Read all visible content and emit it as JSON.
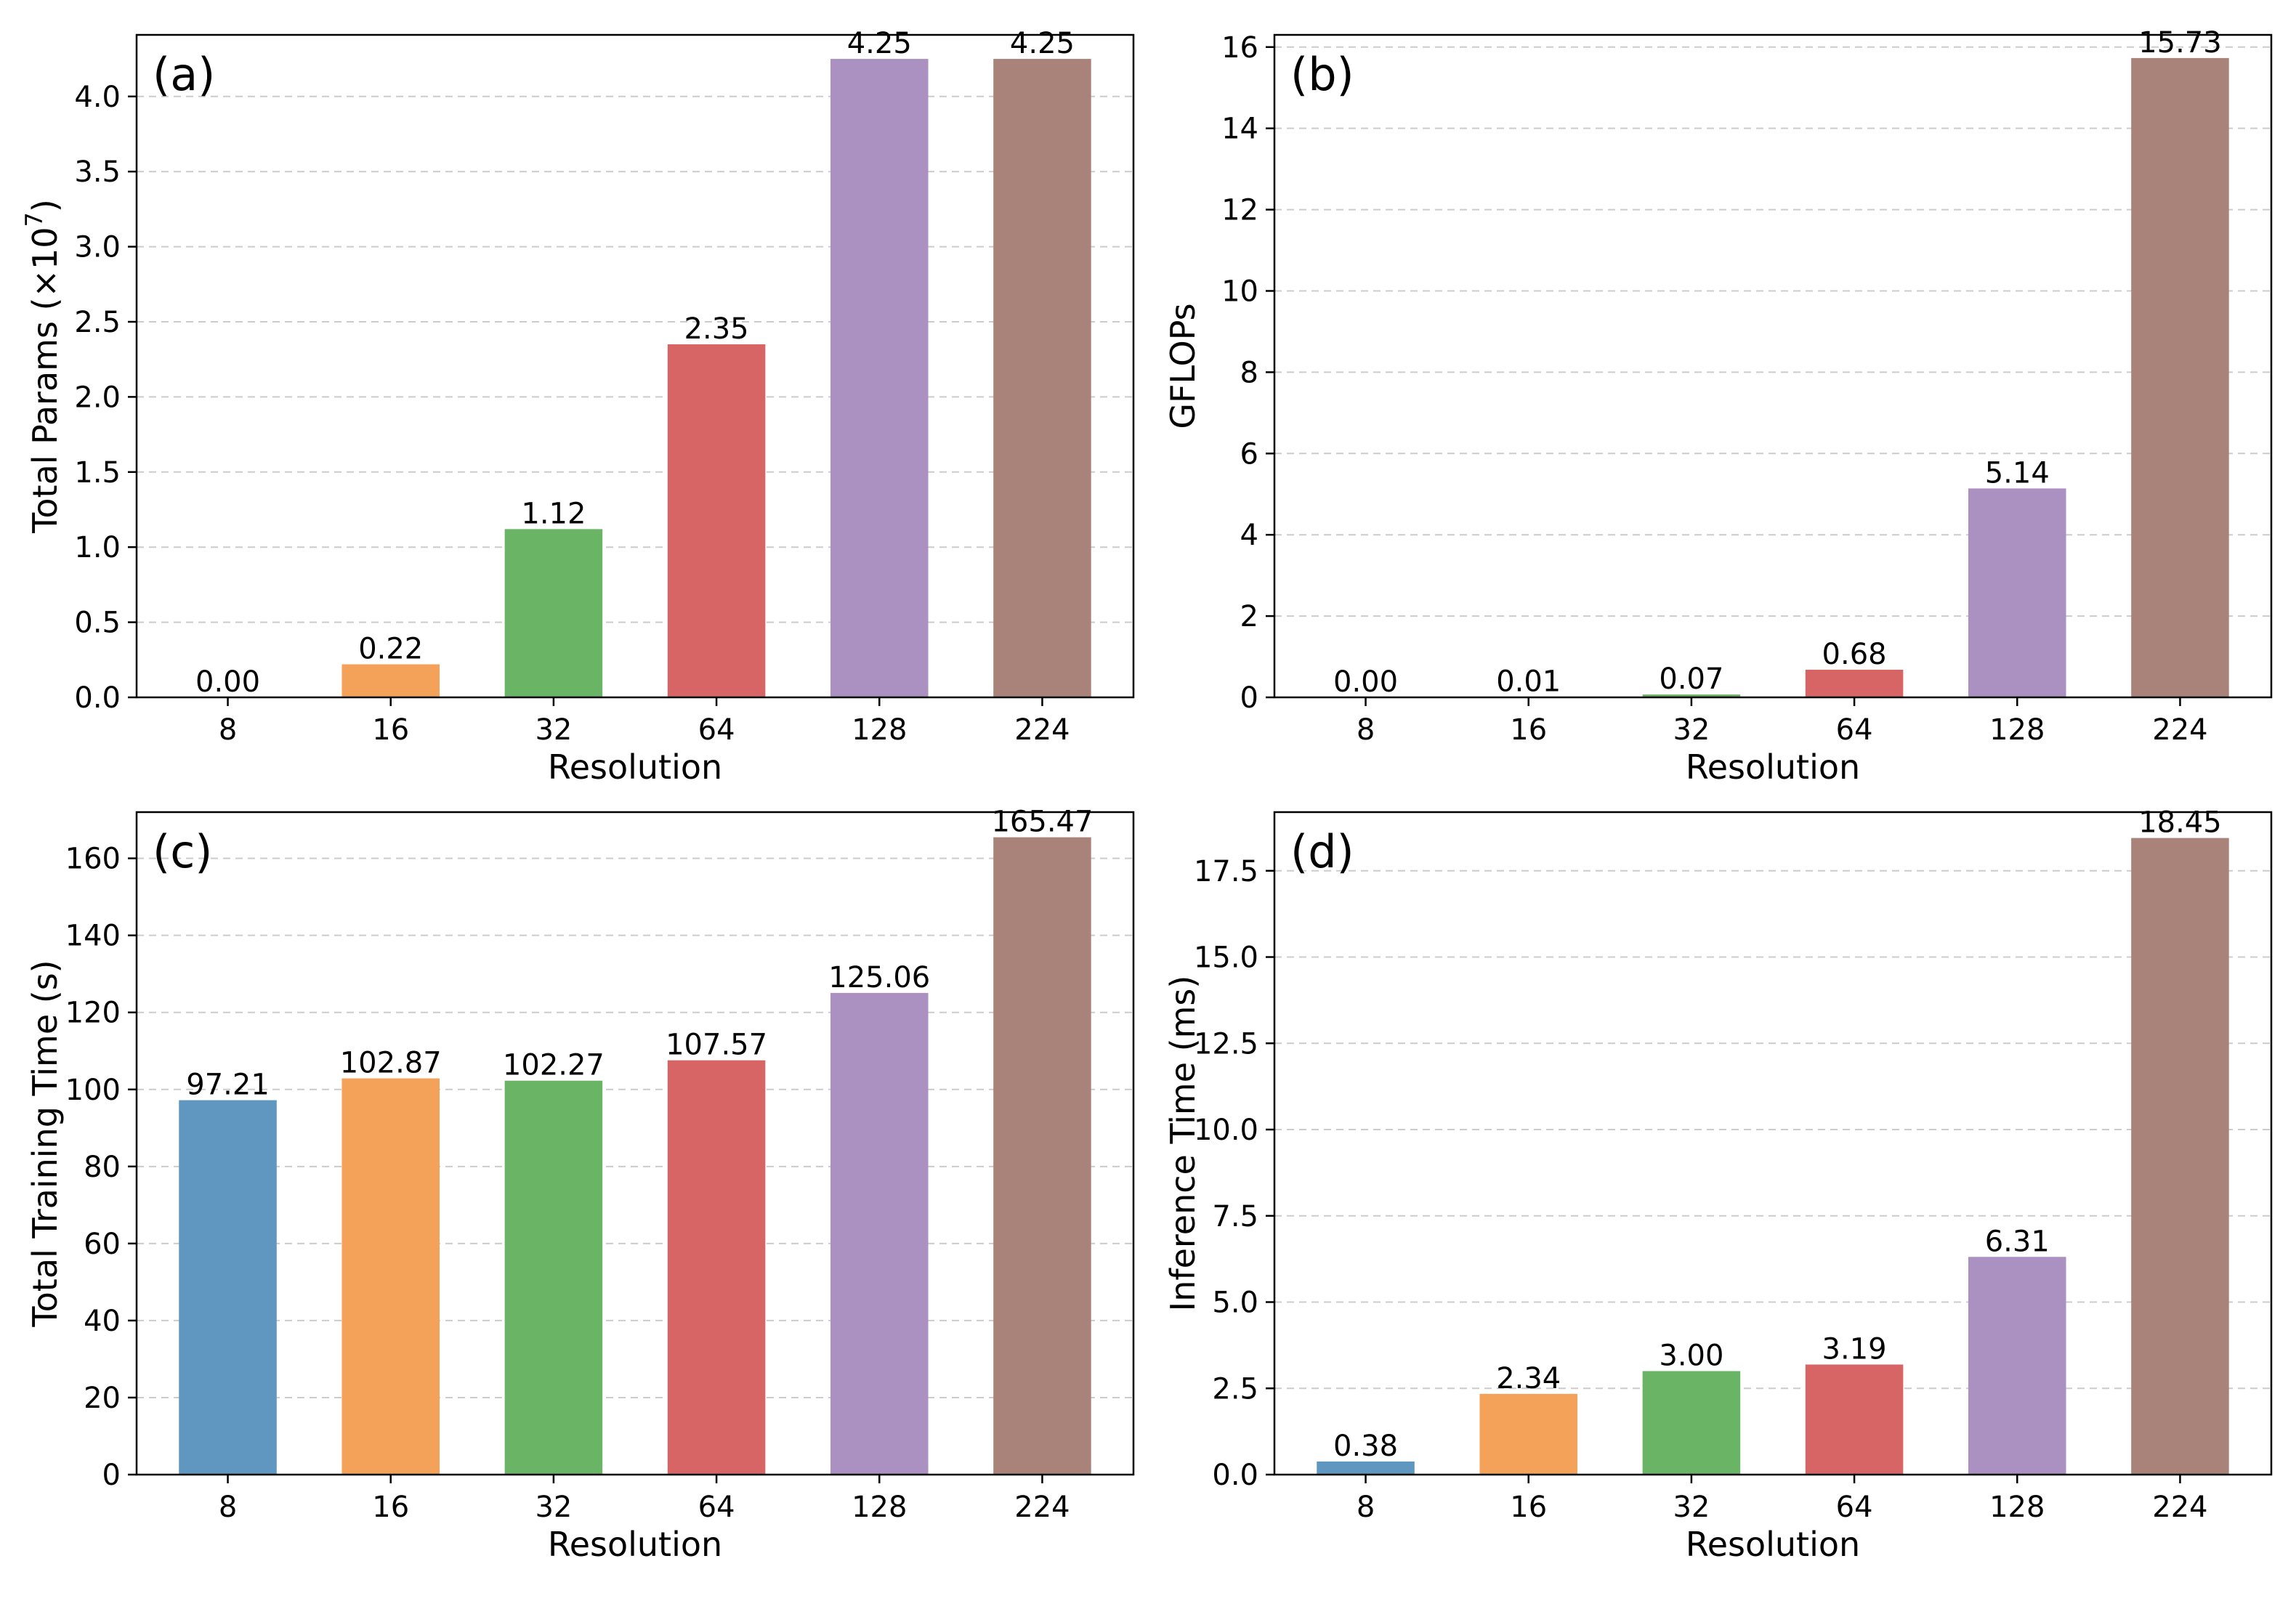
{
  "figure": {
    "categories": [
      "8",
      "16",
      "32",
      "64",
      "128",
      "224"
    ],
    "bar_colors": [
      "#5f97c1",
      "#f4a15a",
      "#6ab466",
      "#d76565",
      "#ab90c2",
      "#a9837a"
    ]
  },
  "chart_data": [
    {
      "type": "bar",
      "panel": "(a)",
      "title": "",
      "xlabel": "Resolution",
      "ylabel_prefix": "Total Params (×10",
      "ylabel_exponent": "7",
      "ylabel_suffix": ")",
      "categories": [
        "8",
        "16",
        "32",
        "64",
        "128",
        "224"
      ],
      "values": [
        0.0,
        0.22,
        1.12,
        2.35,
        4.25,
        4.25
      ],
      "value_labels": [
        "0.00",
        "0.22",
        "1.12",
        "2.35",
        "4.25",
        "4.25"
      ],
      "ylim": [
        0,
        4.41
      ],
      "yticks": [
        0,
        0.5,
        1.0,
        1.5,
        2.0,
        2.5,
        3.0,
        3.5,
        4.0
      ],
      "ytick_labels": [
        "0.0",
        "0.5",
        "1.0",
        "1.5",
        "2.0",
        "2.5",
        "3.0",
        "3.5",
        "4.0"
      ],
      "grid": "y-dashed"
    },
    {
      "type": "bar",
      "panel": "(b)",
      "title": "",
      "xlabel": "Resolution",
      "ylabel": "GFLOPs",
      "categories": [
        "8",
        "16",
        "32",
        "64",
        "128",
        "224"
      ],
      "values": [
        0.0,
        0.01,
        0.07,
        0.68,
        5.14,
        15.73
      ],
      "value_labels": [
        "0.00",
        "0.01",
        "0.07",
        "0.68",
        "5.14",
        "15.73"
      ],
      "ylim": [
        0,
        16.3
      ],
      "yticks": [
        0,
        2,
        4,
        6,
        8,
        10,
        12,
        14,
        16
      ],
      "ytick_labels": [
        "0",
        "2",
        "4",
        "6",
        "8",
        "10",
        "12",
        "14",
        "16"
      ],
      "grid": "y-dashed"
    },
    {
      "type": "bar",
      "panel": "(c)",
      "title": "",
      "xlabel": "Resolution",
      "ylabel": "Total Training Time (s)",
      "categories": [
        "8",
        "16",
        "32",
        "64",
        "128",
        "224"
      ],
      "values": [
        97.21,
        102.87,
        102.27,
        107.57,
        125.06,
        165.47
      ],
      "value_labels": [
        "97.21",
        "102.87",
        "102.27",
        "107.57",
        "125.06",
        "165.47"
      ],
      "ylim": [
        0,
        172
      ],
      "yticks": [
        0,
        20,
        40,
        60,
        80,
        100,
        120,
        140,
        160
      ],
      "ytick_labels": [
        "0",
        "20",
        "40",
        "60",
        "80",
        "100",
        "120",
        "140",
        "160"
      ],
      "grid": "y-dashed"
    },
    {
      "type": "bar",
      "panel": "(d)",
      "title": "",
      "xlabel": "Resolution",
      "ylabel": "Inference Time (ms)",
      "categories": [
        "8",
        "16",
        "32",
        "64",
        "128",
        "224"
      ],
      "values": [
        0.38,
        2.34,
        3.0,
        3.19,
        6.31,
        18.45
      ],
      "value_labels": [
        "0.38",
        "2.34",
        "3.00",
        "3.19",
        "6.31",
        "18.45"
      ],
      "ylim": [
        0,
        19.2
      ],
      "yticks": [
        0,
        2.5,
        5.0,
        7.5,
        10.0,
        12.5,
        15.0,
        17.5
      ],
      "ytick_labels": [
        "0.0",
        "2.5",
        "5.0",
        "7.5",
        "10.0",
        "12.5",
        "15.0",
        "17.5"
      ],
      "grid": "y-dashed"
    }
  ]
}
